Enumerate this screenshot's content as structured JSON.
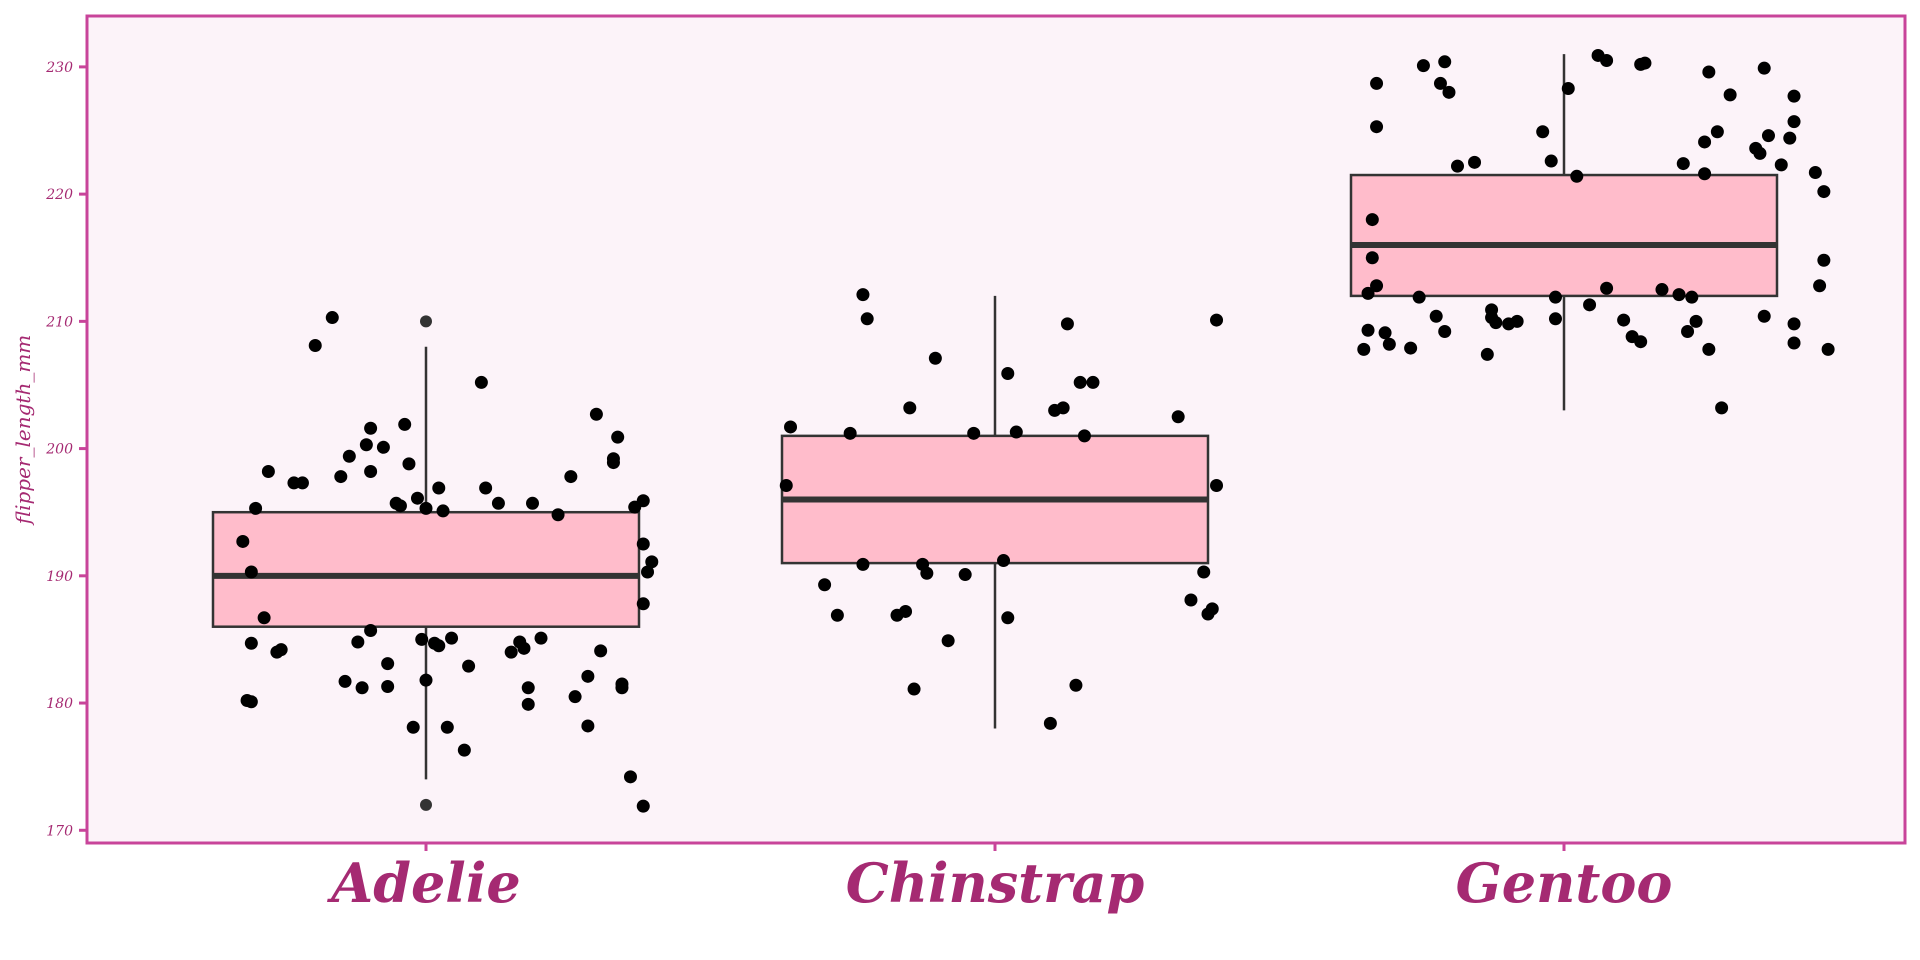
{
  "chart_data": {
    "type": "boxplot",
    "title": "",
    "xlabel": "",
    "ylabel": "flipper_length_mm",
    "ylim": [
      169,
      234
    ],
    "yticks": [
      170,
      180,
      190,
      200,
      210,
      220,
      230
    ],
    "categories": [
      "Adelie",
      "Chinstrap",
      "Gentoo"
    ],
    "grid": false,
    "legend": "none",
    "colors": {
      "accent": "#c8449a",
      "label": "#a52a72",
      "panel_bg": "#fcf3f9",
      "box_fill": "#ffbccb",
      "box_stroke": "#333333",
      "point": "#000000",
      "outlier": "#333333"
    },
    "boxes": [
      {
        "category": "Adelie",
        "min": 174,
        "q1": 186,
        "median": 190,
        "q3": 195,
        "max": 208,
        "outliers": [
          210,
          172
        ]
      },
      {
        "category": "Chinstrap",
        "min": 178,
        "q1": 191,
        "median": 196,
        "q3": 201,
        "max": 212,
        "outliers": []
      },
      {
        "category": "Gentoo",
        "min": 203,
        "q1": 212,
        "median": 216,
        "q3": 221.5,
        "max": 231,
        "outliers": []
      }
    ],
    "points": [
      {
        "category": "Adelie",
        "values": [
          {
            "offset": -0.43,
            "y": 192.7
          },
          {
            "offset": -0.41,
            "y": 190.3
          },
          {
            "offset": -0.41,
            "y": 184.7
          },
          {
            "offset": -0.4,
            "y": 195.3
          },
          {
            "offset": -0.42,
            "y": 180.2
          },
          {
            "offset": -0.41,
            "y": 180.1
          },
          {
            "offset": -0.37,
            "y": 198.2
          },
          {
            "offset": -0.38,
            "y": 186.7
          },
          {
            "offset": -0.35,
            "y": 184.0
          },
          {
            "offset": -0.34,
            "y": 184.2
          },
          {
            "offset": -0.31,
            "y": 197.3
          },
          {
            "offset": -0.29,
            "y": 197.3
          },
          {
            "offset": -0.26,
            "y": 208.1
          },
          {
            "offset": -0.22,
            "y": 210.3
          },
          {
            "offset": -0.2,
            "y": 197.8
          },
          {
            "offset": -0.19,
            "y": 181.7
          },
          {
            "offset": -0.18,
            "y": 199.4
          },
          {
            "offset": -0.16,
            "y": 184.8
          },
          {
            "offset": -0.15,
            "y": 181.2
          },
          {
            "offset": -0.14,
            "y": 200.3
          },
          {
            "offset": -0.13,
            "y": 201.6
          },
          {
            "offset": -0.13,
            "y": 198.2
          },
          {
            "offset": -0.13,
            "y": 185.7
          },
          {
            "offset": -0.1,
            "y": 200.1
          },
          {
            "offset": -0.09,
            "y": 183.1
          },
          {
            "offset": -0.09,
            "y": 181.3
          },
          {
            "offset": -0.07,
            "y": 195.7
          },
          {
            "offset": -0.06,
            "y": 195.5
          },
          {
            "offset": -0.05,
            "y": 201.9
          },
          {
            "offset": -0.04,
            "y": 198.8
          },
          {
            "offset": -0.03,
            "y": 178.1
          },
          {
            "offset": -0.02,
            "y": 196.1
          },
          {
            "offset": -0.01,
            "y": 185.0
          },
          {
            "offset": 0.0,
            "y": 195.3
          },
          {
            "offset": 0.0,
            "y": 181.8
          },
          {
            "offset": 0.02,
            "y": 184.7
          },
          {
            "offset": 0.03,
            "y": 184.5
          },
          {
            "offset": 0.03,
            "y": 196.9
          },
          {
            "offset": 0.06,
            "y": 185.1
          },
          {
            "offset": 0.05,
            "y": 178.1
          },
          {
            "offset": 0.04,
            "y": 195.1
          },
          {
            "offset": 0.09,
            "y": 176.3
          },
          {
            "offset": 0.1,
            "y": 182.9
          },
          {
            "offset": 0.13,
            "y": 205.2
          },
          {
            "offset": 0.14,
            "y": 196.9
          },
          {
            "offset": 0.17,
            "y": 195.7
          },
          {
            "offset": 0.2,
            "y": 184.0
          },
          {
            "offset": 0.22,
            "y": 184.8
          },
          {
            "offset": 0.23,
            "y": 184.3
          },
          {
            "offset": 0.24,
            "y": 181.2
          },
          {
            "offset": 0.24,
            "y": 179.9
          },
          {
            "offset": 0.25,
            "y": 195.7
          },
          {
            "offset": 0.27,
            "y": 185.1
          },
          {
            "offset": 0.31,
            "y": 194.8
          },
          {
            "offset": 0.34,
            "y": 197.8
          },
          {
            "offset": 0.35,
            "y": 180.5
          },
          {
            "offset": 0.38,
            "y": 182.1
          },
          {
            "offset": 0.38,
            "y": 178.2
          },
          {
            "offset": 0.41,
            "y": 184.1
          },
          {
            "offset": 0.4,
            "y": 202.7
          },
          {
            "offset": 0.44,
            "y": 199.2
          },
          {
            "offset": 0.44,
            "y": 198.9
          },
          {
            "offset": 0.45,
            "y": 200.9
          },
          {
            "offset": 0.46,
            "y": 181.5
          },
          {
            "offset": 0.46,
            "y": 181.2
          },
          {
            "offset": 0.48,
            "y": 174.2
          },
          {
            "offset": 0.49,
            "y": 195.4
          },
          {
            "offset": 0.51,
            "y": 195.9
          },
          {
            "offset": 0.51,
            "y": 192.5
          },
          {
            "offset": 0.51,
            "y": 187.8
          },
          {
            "offset": 0.52,
            "y": 190.3
          },
          {
            "offset": 0.53,
            "y": 191.1
          },
          {
            "offset": 0.51,
            "y": 171.9
          }
        ]
      },
      {
        "category": "Chinstrap",
        "values": [
          {
            "offset": -0.49,
            "y": 197.1
          },
          {
            "offset": -0.48,
            "y": 201.7
          },
          {
            "offset": -0.4,
            "y": 189.3
          },
          {
            "offset": -0.37,
            "y": 186.9
          },
          {
            "offset": -0.34,
            "y": 201.2
          },
          {
            "offset": -0.31,
            "y": 190.9
          },
          {
            "offset": -0.31,
            "y": 212.1
          },
          {
            "offset": -0.3,
            "y": 210.2
          },
          {
            "offset": -0.23,
            "y": 186.9
          },
          {
            "offset": -0.21,
            "y": 187.2
          },
          {
            "offset": -0.2,
            "y": 203.2
          },
          {
            "offset": -0.19,
            "y": 181.1
          },
          {
            "offset": -0.17,
            "y": 190.9
          },
          {
            "offset": -0.16,
            "y": 190.2
          },
          {
            "offset": -0.14,
            "y": 207.1
          },
          {
            "offset": -0.11,
            "y": 184.9
          },
          {
            "offset": -0.07,
            "y": 190.1
          },
          {
            "offset": -0.05,
            "y": 201.2
          },
          {
            "offset": 0.02,
            "y": 191.2
          },
          {
            "offset": 0.03,
            "y": 186.7
          },
          {
            "offset": 0.03,
            "y": 205.9
          },
          {
            "offset": 0.05,
            "y": 201.3
          },
          {
            "offset": 0.14,
            "y": 203.0
          },
          {
            "offset": 0.16,
            "y": 203.2
          },
          {
            "offset": 0.17,
            "y": 209.8
          },
          {
            "offset": 0.19,
            "y": 181.4
          },
          {
            "offset": 0.2,
            "y": 205.2
          },
          {
            "offset": 0.23,
            "y": 205.2
          },
          {
            "offset": 0.21,
            "y": 201.0
          },
          {
            "offset": 0.13,
            "y": 178.4
          },
          {
            "offset": 0.43,
            "y": 202.5
          },
          {
            "offset": 0.46,
            "y": 188.1
          },
          {
            "offset": 0.49,
            "y": 190.3
          },
          {
            "offset": 0.5,
            "y": 187.0
          },
          {
            "offset": 0.51,
            "y": 187.4
          },
          {
            "offset": 0.52,
            "y": 197.1
          },
          {
            "offset": 0.52,
            "y": 210.1
          }
        ]
      },
      {
        "category": "Gentoo",
        "values": [
          {
            "offset": -0.47,
            "y": 207.8
          },
          {
            "offset": -0.46,
            "y": 212.2
          },
          {
            "offset": -0.46,
            "y": 209.3
          },
          {
            "offset": -0.45,
            "y": 215.0
          },
          {
            "offset": -0.45,
            "y": 218.0
          },
          {
            "offset": -0.44,
            "y": 228.7
          },
          {
            "offset": -0.44,
            "y": 225.3
          },
          {
            "offset": -0.44,
            "y": 212.8
          },
          {
            "offset": -0.42,
            "y": 209.1
          },
          {
            "offset": -0.41,
            "y": 208.2
          },
          {
            "offset": -0.36,
            "y": 207.9
          },
          {
            "offset": -0.34,
            "y": 211.9
          },
          {
            "offset": -0.33,
            "y": 230.1
          },
          {
            "offset": -0.3,
            "y": 210.4
          },
          {
            "offset": -0.29,
            "y": 228.7
          },
          {
            "offset": -0.28,
            "y": 230.4
          },
          {
            "offset": -0.28,
            "y": 209.2
          },
          {
            "offset": -0.27,
            "y": 228.0
          },
          {
            "offset": -0.25,
            "y": 222.2
          },
          {
            "offset": -0.21,
            "y": 222.5
          },
          {
            "offset": -0.18,
            "y": 207.4
          },
          {
            "offset": -0.17,
            "y": 210.9
          },
          {
            "offset": -0.17,
            "y": 210.3
          },
          {
            "offset": -0.16,
            "y": 209.9
          },
          {
            "offset": -0.13,
            "y": 209.8
          },
          {
            "offset": -0.11,
            "y": 210.0
          },
          {
            "offset": -0.05,
            "y": 224.9
          },
          {
            "offset": -0.03,
            "y": 222.6
          },
          {
            "offset": -0.02,
            "y": 211.9
          },
          {
            "offset": -0.02,
            "y": 210.2
          },
          {
            "offset": 0.01,
            "y": 228.3
          },
          {
            "offset": 0.03,
            "y": 221.4
          },
          {
            "offset": 0.06,
            "y": 211.3
          },
          {
            "offset": 0.08,
            "y": 230.9
          },
          {
            "offset": 0.1,
            "y": 230.5
          },
          {
            "offset": 0.1,
            "y": 212.6
          },
          {
            "offset": 0.14,
            "y": 210.1
          },
          {
            "offset": 0.16,
            "y": 208.8
          },
          {
            "offset": 0.18,
            "y": 208.4
          },
          {
            "offset": 0.18,
            "y": 230.2
          },
          {
            "offset": 0.19,
            "y": 230.3
          },
          {
            "offset": 0.23,
            "y": 212.5
          },
          {
            "offset": 0.27,
            "y": 212.1
          },
          {
            "offset": 0.28,
            "y": 222.4
          },
          {
            "offset": 0.29,
            "y": 209.2
          },
          {
            "offset": 0.3,
            "y": 211.9
          },
          {
            "offset": 0.31,
            "y": 210.0
          },
          {
            "offset": 0.33,
            "y": 224.1
          },
          {
            "offset": 0.33,
            "y": 221.6
          },
          {
            "offset": 0.34,
            "y": 229.6
          },
          {
            "offset": 0.34,
            "y": 207.8
          },
          {
            "offset": 0.36,
            "y": 224.9
          },
          {
            "offset": 0.37,
            "y": 203.2
          },
          {
            "offset": 0.39,
            "y": 227.8
          },
          {
            "offset": 0.45,
            "y": 223.6
          },
          {
            "offset": 0.46,
            "y": 223.2
          },
          {
            "offset": 0.47,
            "y": 229.9
          },
          {
            "offset": 0.47,
            "y": 210.4
          },
          {
            "offset": 0.48,
            "y": 224.6
          },
          {
            "offset": 0.51,
            "y": 222.3
          },
          {
            "offset": 0.53,
            "y": 224.4
          },
          {
            "offset": 0.54,
            "y": 227.7
          },
          {
            "offset": 0.54,
            "y": 225.7
          },
          {
            "offset": 0.54,
            "y": 209.8
          },
          {
            "offset": 0.54,
            "y": 208.3
          },
          {
            "offset": 0.59,
            "y": 221.7
          },
          {
            "offset": 0.6,
            "y": 212.8
          },
          {
            "offset": 0.61,
            "y": 220.2
          },
          {
            "offset": 0.61,
            "y": 214.8
          },
          {
            "offset": 0.62,
            "y": 207.8
          }
        ]
      }
    ]
  }
}
